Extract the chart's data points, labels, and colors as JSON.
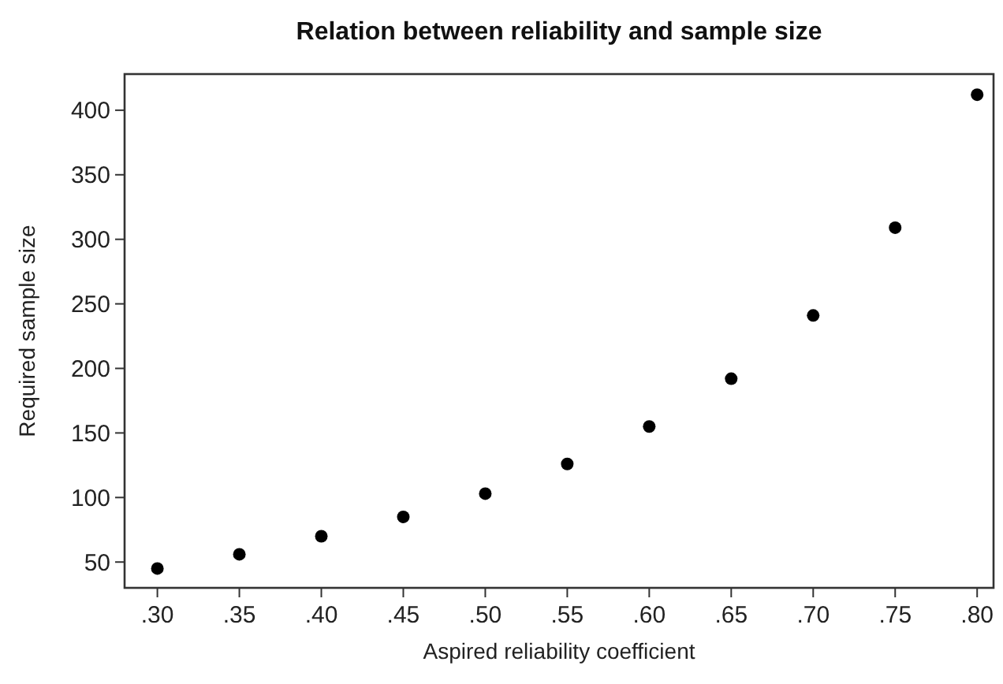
{
  "chart_data": {
    "type": "scatter",
    "title": "Relation between reliability and sample size",
    "xlabel": "Aspired reliability coefficient",
    "ylabel": "Required sample size",
    "x": [
      0.3,
      0.35,
      0.4,
      0.45,
      0.5,
      0.55,
      0.6,
      0.65,
      0.7,
      0.75,
      0.8
    ],
    "series": [
      {
        "color": "#000000",
        "values": [
          45,
          56,
          70,
          85,
          103,
          126,
          155,
          192,
          241,
          309,
          412
        ]
      }
    ],
    "xlim": [
      0.28,
      0.81
    ],
    "ylim": [
      30,
      428
    ],
    "xticks": [
      {
        "value": 0.3,
        "label": ".30"
      },
      {
        "value": 0.35,
        "label": ".35"
      },
      {
        "value": 0.4,
        "label": ".40"
      },
      {
        "value": 0.45,
        "label": ".45"
      },
      {
        "value": 0.5,
        "label": ".50"
      },
      {
        "value": 0.55,
        "label": ".55"
      },
      {
        "value": 0.6,
        "label": ".60"
      },
      {
        "value": 0.65,
        "label": ".65"
      },
      {
        "value": 0.7,
        "label": ".70"
      },
      {
        "value": 0.75,
        "label": ".75"
      },
      {
        "value": 0.8,
        "label": ".80"
      }
    ],
    "yticks": [
      50,
      100,
      150,
      200,
      250,
      300,
      350,
      400
    ],
    "grid": false,
    "marker": "circle"
  }
}
